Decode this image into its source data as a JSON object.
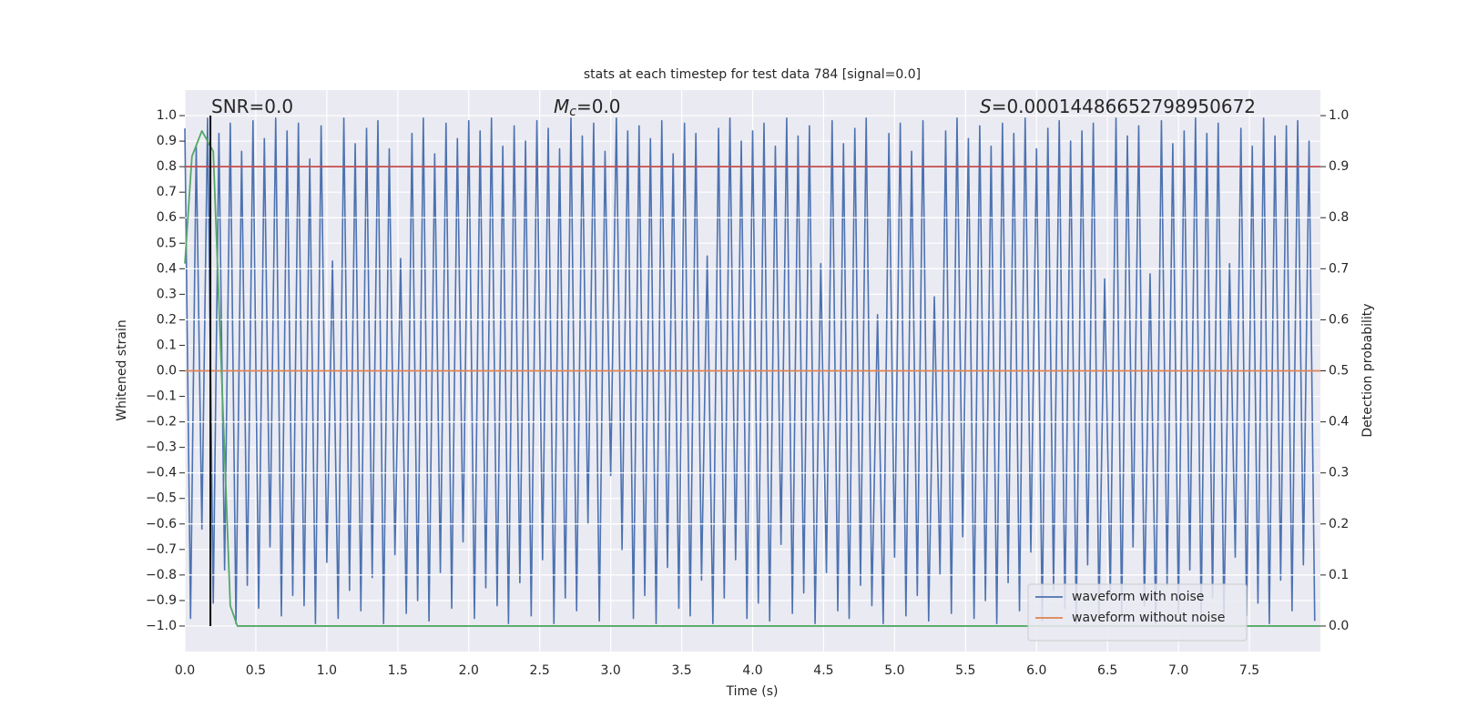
{
  "chart_data": {
    "type": "line",
    "title": "stats at each timestep for test data 784 [signal=0.0]",
    "xlabel": "Time (s)",
    "ylabel": "Whitened strain",
    "y2label": "Detection probability",
    "annotations": [
      {
        "text": "SNR=0.0"
      },
      {
        "symbol": "M",
        "subscript": "c",
        "text": "=0.0"
      },
      {
        "symbol": "S",
        "text": "=0.00014486652798950672"
      }
    ],
    "xlim": [
      0,
      8
    ],
    "ylim": [
      -1.1,
      1.1
    ],
    "y2lim": [
      -0.05,
      1.05
    ],
    "xticks": [
      {
        "value": 0,
        "label": "0.0"
      },
      {
        "value": 0.5,
        "label": "0.5"
      },
      {
        "value": 1,
        "label": "1.0"
      },
      {
        "value": 1.5,
        "label": "1.5"
      },
      {
        "value": 2,
        "label": "2.0"
      },
      {
        "value": 2.5,
        "label": "2.5"
      },
      {
        "value": 3,
        "label": "3.0"
      },
      {
        "value": 3.5,
        "label": "3.5"
      },
      {
        "value": 4,
        "label": "4.0"
      },
      {
        "value": 4.5,
        "label": "4.5"
      },
      {
        "value": 5,
        "label": "5.0"
      },
      {
        "value": 5.5,
        "label": "5.5"
      },
      {
        "value": 6,
        "label": "6.0"
      },
      {
        "value": 6.5,
        "label": "6.5"
      },
      {
        "value": 7,
        "label": "7.0"
      },
      {
        "value": 7.5,
        "label": "7.5"
      }
    ],
    "yticks": [
      {
        "value": -1,
        "label": "−1.0"
      },
      {
        "value": -0.9,
        "label": "−0.9"
      },
      {
        "value": -0.8,
        "label": "−0.8"
      },
      {
        "value": -0.7,
        "label": "−0.7"
      },
      {
        "value": -0.6,
        "label": "−0.6"
      },
      {
        "value": -0.5,
        "label": "−0.5"
      },
      {
        "value": -0.4,
        "label": "−0.4"
      },
      {
        "value": -0.3,
        "label": "−0.3"
      },
      {
        "value": -0.2,
        "label": "−0.2"
      },
      {
        "value": -0.1,
        "label": "−0.1"
      },
      {
        "value": 0,
        "label": "0.0"
      },
      {
        "value": 0.1,
        "label": "0.1"
      },
      {
        "value": 0.2,
        "label": "0.2"
      },
      {
        "value": 0.3,
        "label": "0.3"
      },
      {
        "value": 0.4,
        "label": "0.4"
      },
      {
        "value": 0.5,
        "label": "0.5"
      },
      {
        "value": 0.6,
        "label": "0.6"
      },
      {
        "value": 0.7,
        "label": "0.7"
      },
      {
        "value": 0.8,
        "label": "0.8"
      },
      {
        "value": 0.9,
        "label": "0.9"
      },
      {
        "value": 1,
        "label": "1.0"
      }
    ],
    "y2ticks": [
      {
        "value": 0,
        "label": "0.0"
      },
      {
        "value": 0.1,
        "label": "0.1"
      },
      {
        "value": 0.2,
        "label": "0.2"
      },
      {
        "value": 0.3,
        "label": "0.3"
      },
      {
        "value": 0.4,
        "label": "0.4"
      },
      {
        "value": 0.5,
        "label": "0.5"
      },
      {
        "value": 0.6,
        "label": "0.6"
      },
      {
        "value": 0.7,
        "label": "0.7"
      },
      {
        "value": 0.8,
        "label": "0.8"
      },
      {
        "value": 0.9,
        "label": "0.9"
      },
      {
        "value": 1,
        "label": "1.0"
      }
    ],
    "grid": true,
    "legend": "lower right",
    "series": [
      {
        "name": "waveform with noise",
        "color": "#4c72b0",
        "x": [
          0,
          0.04,
          0.08,
          0.12,
          0.16,
          0.2,
          0.24,
          0.28,
          0.32,
          0.36,
          0.4,
          0.44,
          0.48,
          0.52,
          0.56,
          0.6,
          0.64,
          0.68,
          0.72,
          0.76,
          0.8,
          0.84,
          0.88,
          0.92,
          0.96,
          1,
          1.04,
          1.08,
          1.12,
          1.16,
          1.2,
          1.24,
          1.28,
          1.32,
          1.36,
          1.4,
          1.44,
          1.48,
          1.52,
          1.56,
          1.6,
          1.64,
          1.68,
          1.72,
          1.76,
          1.8,
          1.84,
          1.88,
          1.92,
          1.96,
          2,
          2.04,
          2.08,
          2.12,
          2.16,
          2.2,
          2.24,
          2.28,
          2.32,
          2.36,
          2.4,
          2.44,
          2.48,
          2.52,
          2.56,
          2.6,
          2.64,
          2.68,
          2.72,
          2.76,
          2.8,
          2.84,
          2.88,
          2.92,
          2.96,
          3,
          3.04,
          3.08,
          3.12,
          3.16,
          3.2,
          3.24,
          3.28,
          3.32,
          3.36,
          3.4,
          3.44,
          3.48,
          3.52,
          3.56,
          3.6,
          3.64,
          3.68,
          3.72,
          3.76,
          3.8,
          3.84,
          3.88,
          3.92,
          3.96,
          4,
          4.04,
          4.08,
          4.12,
          4.16,
          4.2,
          4.24,
          4.28,
          4.32,
          4.36,
          4.4,
          4.44,
          4.48,
          4.52,
          4.56,
          4.6,
          4.64,
          4.68,
          4.72,
          4.76,
          4.8,
          4.84,
          4.88,
          4.92,
          4.96,
          5,
          5.04,
          5.08,
          5.12,
          5.16,
          5.2,
          5.24,
          5.28,
          5.32,
          5.36,
          5.4,
          5.44,
          5.48,
          5.52,
          5.56,
          5.6,
          5.64,
          5.68,
          5.72,
          5.76,
          5.8,
          5.84,
          5.88,
          5.92,
          5.96,
          6,
          6.04,
          6.08,
          6.12,
          6.16,
          6.2,
          6.24,
          6.28,
          6.32,
          6.36,
          6.4,
          6.44,
          6.48,
          6.52,
          6.56,
          6.6,
          6.64,
          6.68,
          6.72,
          6.76,
          6.8,
          6.84,
          6.88,
          6.92,
          6.96,
          7,
          7.04,
          7.08,
          7.12,
          7.16,
          7.2,
          7.24,
          7.28,
          7.32,
          7.36,
          7.4,
          7.44,
          7.48,
          7.52,
          7.56,
          7.6,
          7.64,
          7.68,
          7.72,
          7.76,
          7.8,
          7.84,
          7.88,
          7.92,
          7.96
        ],
        "values": [
          0.95,
          -0.97,
          0.88,
          -0.62,
          0.99,
          -0.91,
          0.93,
          -0.78,
          0.97,
          -0.99,
          0.86,
          -0.84,
          0.98,
          -0.93,
          0.91,
          -0.69,
          0.99,
          -0.96,
          0.94,
          -0.88,
          0.97,
          -0.92,
          0.83,
          -0.99,
          0.96,
          -0.75,
          0.43,
          -0.97,
          0.99,
          -0.86,
          0.89,
          -0.94,
          0.95,
          -0.81,
          0.98,
          -0.99,
          0.87,
          -0.72,
          0.44,
          -0.95,
          0.93,
          -0.9,
          0.99,
          -0.98,
          0.85,
          -0.79,
          0.97,
          -0.93,
          0.91,
          -0.67,
          0.98,
          -0.97,
          0.94,
          -0.85,
          0.99,
          -0.92,
          0.88,
          -0.99,
          0.96,
          -0.83,
          0.9,
          -0.96,
          0.98,
          -0.74,
          0.95,
          -0.99,
          0.87,
          -0.89,
          0.99,
          -0.94,
          0.92,
          -0.6,
          0.97,
          -0.98,
          0.86,
          -0.41,
          0.99,
          -0.7,
          0.94,
          -0.97,
          0.96,
          -0.88,
          0.91,
          -0.99,
          0.98,
          -0.77,
          0.85,
          -0.93,
          0.97,
          -0.96,
          0.93,
          -0.82,
          0.45,
          -0.99,
          0.95,
          -0.89,
          0.99,
          -0.74,
          0.9,
          -0.97,
          0.94,
          -0.91,
          0.97,
          -0.98,
          0.88,
          -0.68,
          0.99,
          -0.95,
          0.92,
          -0.87,
          0.96,
          -0.99,
          0.42,
          -0.79,
          0.98,
          -0.94,
          0.89,
          -0.97,
          0.95,
          -0.84,
          0.99,
          -0.92,
          0.22,
          -0.99,
          0.93,
          -0.73,
          0.97,
          -0.96,
          0.86,
          -0.88,
          0.98,
          -0.98,
          0.29,
          -0.8,
          0.94,
          -0.95,
          0.99,
          -0.65,
          0.91,
          -0.97,
          0.96,
          -0.9,
          0.88,
          -0.99,
          0.97,
          -0.83,
          0.93,
          -0.94,
          0.99,
          -0.71,
          0.87,
          -0.98,
          0.95,
          -0.86,
          0.98,
          -0.93,
          0.9,
          -0.99,
          0.94,
          -0.76,
          0.97,
          -0.96,
          0.36,
          -0.88,
          0.99,
          -0.97,
          0.92,
          -0.69,
          0.96,
          -0.92,
          0.38,
          -0.99,
          0.98,
          -0.84,
          0.89,
          -0.95,
          0.94,
          -0.78,
          0.99,
          -0.97,
          0.93,
          -0.89,
          0.97,
          -0.98,
          0.42,
          -0.73,
          0.95,
          -0.96,
          0.88,
          -0.91,
          0.99,
          -0.99,
          0.92,
          -0.82,
          0.96,
          -0.94,
          0.98,
          -0.76,
          0.9,
          -0.98
        ]
      },
      {
        "name": "waveform without noise",
        "color": "#dd8452",
        "x": [
          0,
          8
        ],
        "values": [
          0,
          0
        ]
      },
      {
        "color": "#55a868",
        "axis": "y2",
        "x": [
          0,
          0.05,
          0.12,
          0.2,
          0.32,
          0.37,
          8
        ],
        "values": [
          0.71,
          0.92,
          0.97,
          0.93,
          0.04,
          0,
          0
        ]
      }
    ],
    "hlines": [
      {
        "y": 0.9,
        "axis": "y2",
        "color": "#c44e52"
      }
    ],
    "vlines": [
      {
        "x": 0.18,
        "ymin": -1,
        "ymax": 1,
        "color": "#000000"
      }
    ]
  }
}
